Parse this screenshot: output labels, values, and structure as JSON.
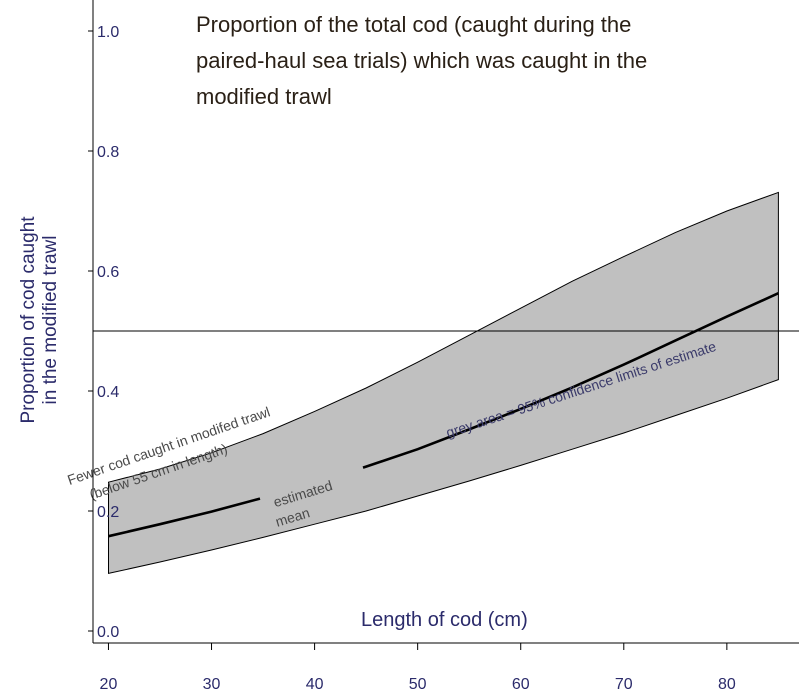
{
  "chart_data": {
    "type": "line",
    "title_lines": [
      "Proportion of the total cod (caught during the",
      "paired-haul sea trials) which was caught in the",
      "modified trawl"
    ],
    "xlabel": "Length of cod (cm)",
    "ylabel_lines": [
      "Proportion of cod caught",
      "in the modified trawl"
    ],
    "xlim": [
      18.5,
      87
    ],
    "ylim": [
      -0.02,
      1.04
    ],
    "xticks": [
      "20",
      "30",
      "40",
      "50",
      "60",
      "70",
      "80"
    ],
    "yticks": [
      "0.0",
      "0.2",
      "0.4",
      "0.6",
      "0.8",
      "1.0"
    ],
    "reference_line": 0.5,
    "series": [
      {
        "role": "estimated mean",
        "x": [
          20,
          25,
          30,
          35,
          40,
          45,
          50,
          55,
          60,
          65,
          70,
          75,
          80,
          85
        ],
        "y": [
          0.158,
          0.178,
          0.199,
          0.222,
          0.247,
          0.274,
          0.303,
          0.336,
          0.37,
          0.406,
          0.444,
          0.484,
          0.524,
          0.563
        ],
        "gaps": [
          [
            34.7,
            44.7
          ]
        ]
      },
      {
        "role": "upper 95% confidence limit",
        "x": [
          20,
          25,
          30,
          35,
          40,
          45,
          50,
          55,
          60,
          65,
          70,
          75,
          80,
          85
        ],
        "y": [
          0.248,
          0.27,
          0.297,
          0.329,
          0.366,
          0.405,
          0.448,
          0.493,
          0.538,
          0.583,
          0.624,
          0.664,
          0.7,
          0.731
        ]
      },
      {
        "role": "lower 95% confidence limit",
        "x": [
          20,
          25,
          30,
          35,
          40,
          45,
          50,
          55,
          60,
          65,
          70,
          75,
          80,
          85
        ],
        "y": [
          0.096,
          0.115,
          0.135,
          0.156,
          0.178,
          0.2,
          0.225,
          0.25,
          0.276,
          0.303,
          0.33,
          0.359,
          0.388,
          0.419
        ]
      }
    ],
    "annotations": [
      {
        "text": "Fewer cod caught in modifed trawl",
        "x": 26,
        "y": 0.301,
        "angle": -19
      },
      {
        "text": "(below 55 cm in length)",
        "x": 25,
        "y": 0.258,
        "angle": -19
      },
      {
        "text": "estimated",
        "x": 39,
        "y": 0.221,
        "angle": -17
      },
      {
        "text": "mean",
        "x": 38,
        "y": 0.182,
        "angle": -17
      },
      {
        "text": "grey area = 95% confidence limits of estimate",
        "x": 66,
        "y": 0.395,
        "angle": -18
      }
    ],
    "grid": false,
    "colors": {
      "band": "#c0c0c0",
      "band_edge": "#000000",
      "mean_line": "#000000",
      "reference_line": "#000000",
      "axis_text": "#2b2b6b",
      "title_text": "#2a2016",
      "annotation_dark": "#4a4a4a",
      "annotation_accent": "#3a3a6a"
    }
  }
}
